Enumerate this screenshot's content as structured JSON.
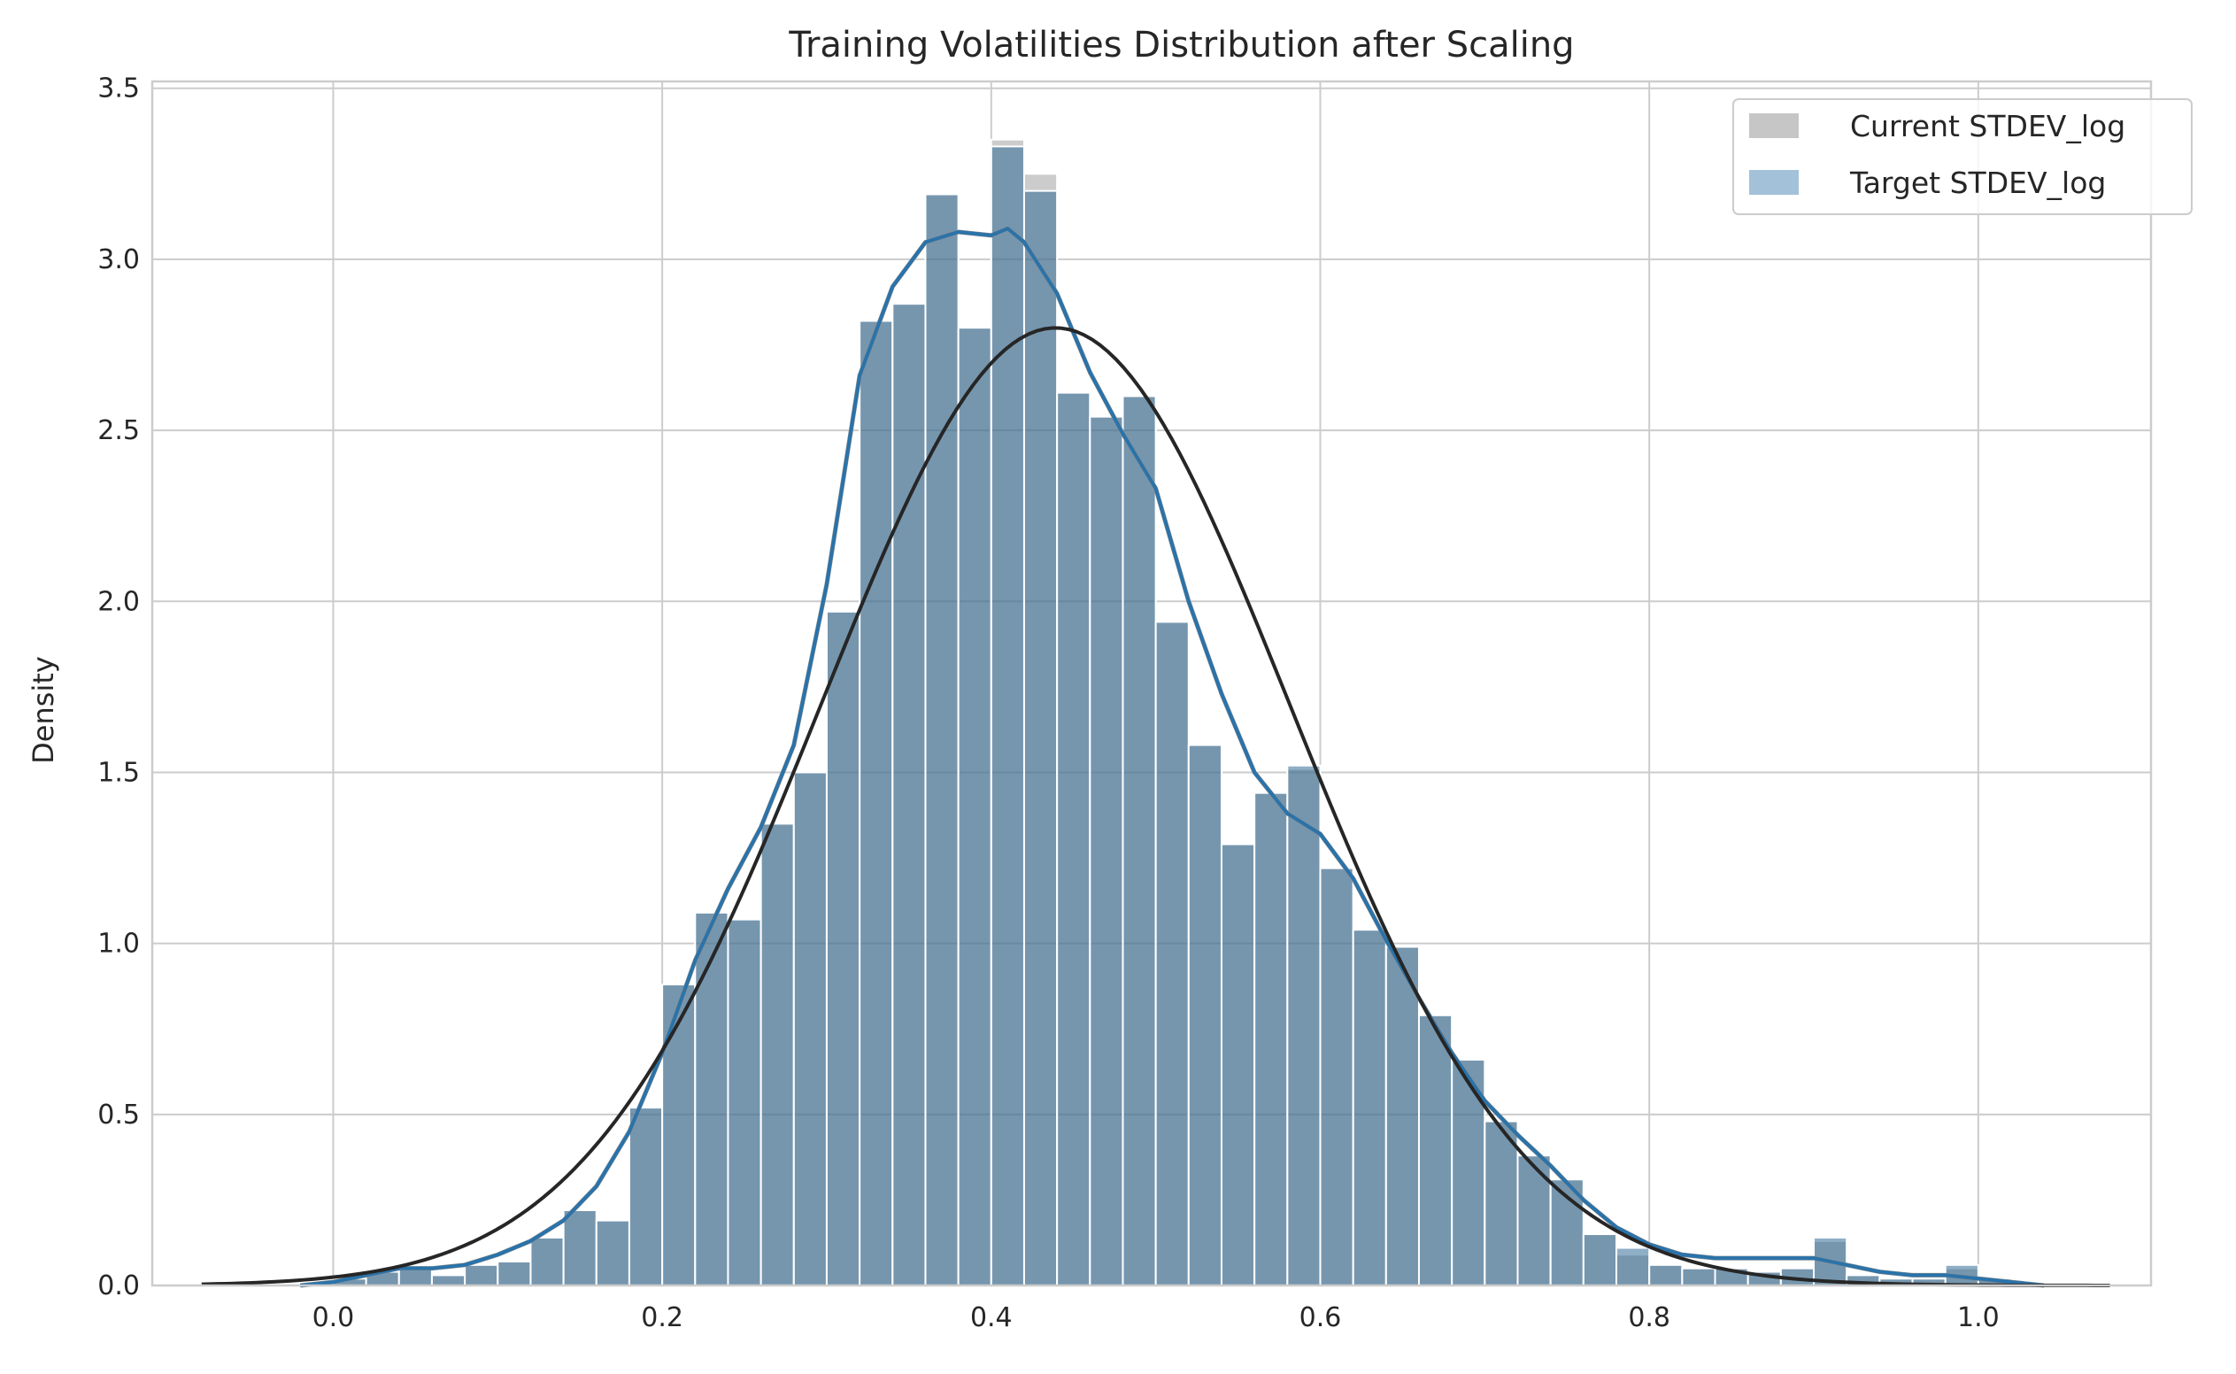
{
  "chart_data": {
    "type": "histogram",
    "title": "Training Volatilities Distribution after Scaling",
    "xlabel": "",
    "ylabel": "Density",
    "xlim": [
      -0.11,
      1.105
    ],
    "ylim": [
      0,
      3.52
    ],
    "xticks": [
      0.0,
      0.2,
      0.4,
      0.6,
      0.8,
      1.0
    ],
    "xtick_labels": [
      "0.0",
      "0.2",
      "0.4",
      "0.6",
      "0.8",
      "1.0"
    ],
    "yticks": [
      0.0,
      0.5,
      1.0,
      1.5,
      2.0,
      2.5,
      3.0,
      3.5
    ],
    "ytick_labels": [
      "0.0",
      "0.5",
      "1.0",
      "1.5",
      "2.0",
      "2.5",
      "3.0",
      "3.5"
    ],
    "grid": true,
    "legend_position": "top-right",
    "bins": {
      "start": 0.0,
      "width": 0.02,
      "current_values": [
        0.02,
        0.04,
        0.05,
        0.03,
        0.06,
        0.07,
        0.14,
        0.22,
        0.19,
        0.52,
        0.88,
        1.09,
        1.07,
        1.35,
        1.5,
        1.97,
        2.82,
        2.87,
        3.19,
        2.8,
        3.35,
        3.25,
        2.61,
        2.54,
        2.6,
        1.94,
        1.58,
        1.29,
        1.44,
        1.51,
        1.22,
        1.04,
        0.99,
        0.79,
        0.66,
        0.48,
        0.38,
        0.31,
        0.15,
        0.09,
        0.06,
        0.05,
        0.05,
        0.04,
        0.05,
        0.13,
        0.03,
        0.02,
        0.02,
        0.05,
        0.02
      ],
      "target_values": [
        0.02,
        0.04,
        0.05,
        0.03,
        0.06,
        0.07,
        0.14,
        0.22,
        0.19,
        0.52,
        0.88,
        1.09,
        1.07,
        1.35,
        1.5,
        1.97,
        2.82,
        2.87,
        3.19,
        2.8,
        3.33,
        3.2,
        2.61,
        2.54,
        2.6,
        1.94,
        1.58,
        1.29,
        1.44,
        1.52,
        1.22,
        1.04,
        0.99,
        0.79,
        0.66,
        0.48,
        0.38,
        0.31,
        0.15,
        0.11,
        0.06,
        0.05,
        0.05,
        0.04,
        0.05,
        0.14,
        0.03,
        0.02,
        0.02,
        0.06,
        0.02
      ]
    },
    "kde_curve": {
      "x": [
        -0.02,
        0.0,
        0.02,
        0.04,
        0.06,
        0.08,
        0.1,
        0.12,
        0.14,
        0.16,
        0.18,
        0.2,
        0.22,
        0.24,
        0.26,
        0.28,
        0.3,
        0.32,
        0.34,
        0.36,
        0.38,
        0.4,
        0.41,
        0.42,
        0.44,
        0.46,
        0.48,
        0.5,
        0.52,
        0.54,
        0.56,
        0.58,
        0.6,
        0.62,
        0.64,
        0.66,
        0.68,
        0.7,
        0.72,
        0.74,
        0.76,
        0.78,
        0.8,
        0.82,
        0.84,
        0.86,
        0.88,
        0.9,
        0.92,
        0.94,
        0.96,
        0.98,
        1.0,
        1.02,
        1.04
      ],
      "y": [
        0.0,
        0.01,
        0.03,
        0.05,
        0.05,
        0.06,
        0.09,
        0.13,
        0.19,
        0.29,
        0.45,
        0.68,
        0.95,
        1.16,
        1.34,
        1.58,
        2.05,
        2.66,
        2.92,
        3.05,
        3.08,
        3.07,
        3.09,
        3.05,
        2.9,
        2.67,
        2.49,
        2.33,
        2.0,
        1.73,
        1.5,
        1.38,
        1.32,
        1.19,
        1.01,
        0.84,
        0.68,
        0.54,
        0.44,
        0.35,
        0.25,
        0.17,
        0.12,
        0.09,
        0.08,
        0.08,
        0.08,
        0.08,
        0.06,
        0.04,
        0.03,
        0.03,
        0.02,
        0.01,
        0.0
      ]
    },
    "normal_fit": {
      "mean": 0.439,
      "std": 0.1425,
      "x_range": [
        -0.08,
        1.08
      ]
    },
    "series": [
      {
        "name": "Current STDEV_log",
        "color": "#c6c6c6"
      },
      {
        "name": "Target STDEV_log",
        "color": "#a3c1d9"
      }
    ],
    "colors": {
      "grid": "#cccccc",
      "axes_edge": "#cccccc",
      "bar_overlap": "#86a8c1",
      "bar_edge": "#ffffff",
      "kde_line": "#2a73aa",
      "normal_line": "#262626"
    }
  }
}
